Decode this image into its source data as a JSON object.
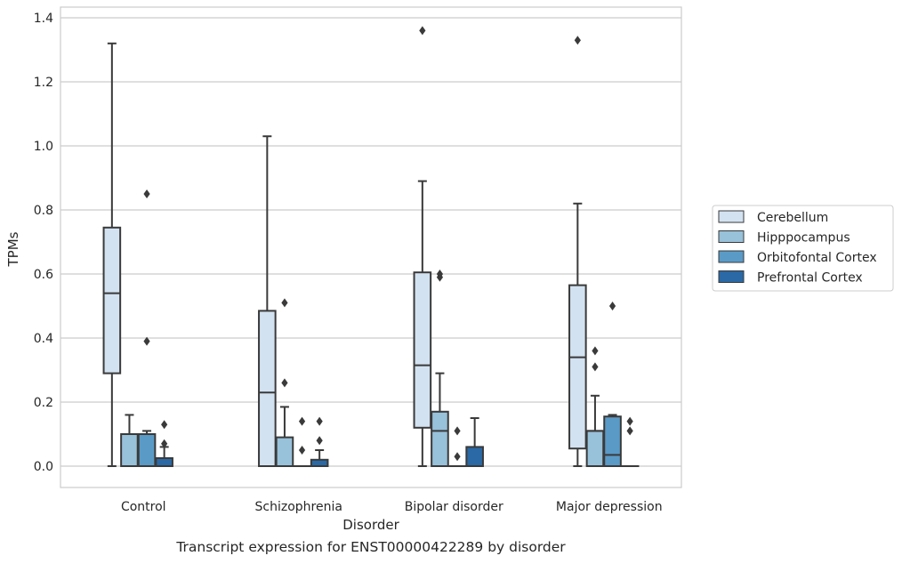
{
  "caption": "Transcript expression for ENST00000422289 by disorder",
  "chart_data": {
    "type": "box",
    "xlabel": "Disorder",
    "ylabel": "TPMs",
    "ylim": [
      -0.065,
      1.43
    ],
    "yticks": [
      0.0,
      0.2,
      0.4,
      0.6,
      0.8,
      1.0,
      1.2,
      1.4
    ],
    "ytick_labels": [
      "0.0",
      "0.2",
      "0.4",
      "0.6",
      "0.8",
      "1.0",
      "1.2",
      "1.4"
    ],
    "grid": "horizontal",
    "legend_position": "right",
    "categories": [
      "Control",
      "Schizophrenia",
      "Bipolar disorder",
      "Major depression"
    ],
    "series": [
      {
        "name": "Cerebellum",
        "color": "#d3e2f1",
        "boxes": [
          {
            "whislo": 0.0,
            "q1": 0.29,
            "med": 0.54,
            "q3": 0.745,
            "whishi": 1.32,
            "fliers": []
          },
          {
            "whislo": 0.0,
            "q1": 0.0,
            "med": 0.23,
            "q3": 0.485,
            "whishi": 1.03,
            "fliers": []
          },
          {
            "whislo": 0.0,
            "q1": 0.12,
            "med": 0.315,
            "q3": 0.605,
            "whishi": 0.89,
            "fliers": [
              1.36
            ]
          },
          {
            "whislo": 0.0,
            "q1": 0.055,
            "med": 0.34,
            "q3": 0.565,
            "whishi": 0.82,
            "fliers": [
              1.33
            ]
          }
        ]
      },
      {
        "name": "Hipppocampus",
        "color": "#98c1da",
        "boxes": [
          {
            "whislo": 0.0,
            "q1": 0.0,
            "med": 0.1,
            "q3": 0.1,
            "whishi": 0.16,
            "fliers": []
          },
          {
            "whislo": 0.0,
            "q1": 0.0,
            "med": 0.0,
            "q3": 0.09,
            "whishi": 0.185,
            "fliers": [
              0.51,
              0.26
            ]
          },
          {
            "whislo": 0.0,
            "q1": 0.0,
            "med": 0.11,
            "q3": 0.17,
            "whishi": 0.29,
            "fliers": [
              0.6,
              0.59
            ]
          },
          {
            "whislo": 0.0,
            "q1": 0.0,
            "med": 0.11,
            "q3": 0.11,
            "whishi": 0.22,
            "fliers": [
              0.36,
              0.31
            ]
          }
        ]
      },
      {
        "name": "Orbitofontal Cortex",
        "color": "#5a9ac7",
        "boxes": [
          {
            "whislo": 0.0,
            "q1": 0.0,
            "med": 0.1,
            "q3": 0.1,
            "whishi": 0.11,
            "fliers": [
              0.85,
              0.39
            ]
          },
          {
            "whislo": 0.0,
            "q1": 0.0,
            "med": 0.0,
            "q3": 0.0,
            "whishi": 0.0,
            "fliers": [
              0.14,
              0.05
            ]
          },
          {
            "whislo": 0.0,
            "q1": 0.0,
            "med": 0.0,
            "q3": 0.0,
            "whishi": 0.0,
            "fliers": [
              0.11,
              0.03
            ]
          },
          {
            "whislo": 0.0,
            "q1": 0.0,
            "med": 0.035,
            "q3": 0.155,
            "whishi": 0.16,
            "fliers": [
              0.5
            ]
          }
        ]
      },
      {
        "name": "Prefrontal Cortex",
        "color": "#2a69a6",
        "boxes": [
          {
            "whislo": 0.0,
            "q1": 0.0,
            "med": 0.0,
            "q3": 0.025,
            "whishi": 0.06,
            "fliers": [
              0.13,
              0.07
            ]
          },
          {
            "whislo": 0.0,
            "q1": 0.0,
            "med": 0.0,
            "q3": 0.02,
            "whishi": 0.05,
            "fliers": [
              0.14,
              0.08
            ]
          },
          {
            "whislo": 0.0,
            "q1": 0.0,
            "med": 0.0,
            "q3": 0.06,
            "whishi": 0.15,
            "fliers": []
          },
          {
            "whislo": 0.0,
            "q1": 0.0,
            "med": 0.0,
            "q3": 0.0,
            "whishi": 0.0,
            "fliers": [
              0.14,
              0.11
            ]
          }
        ]
      }
    ]
  }
}
